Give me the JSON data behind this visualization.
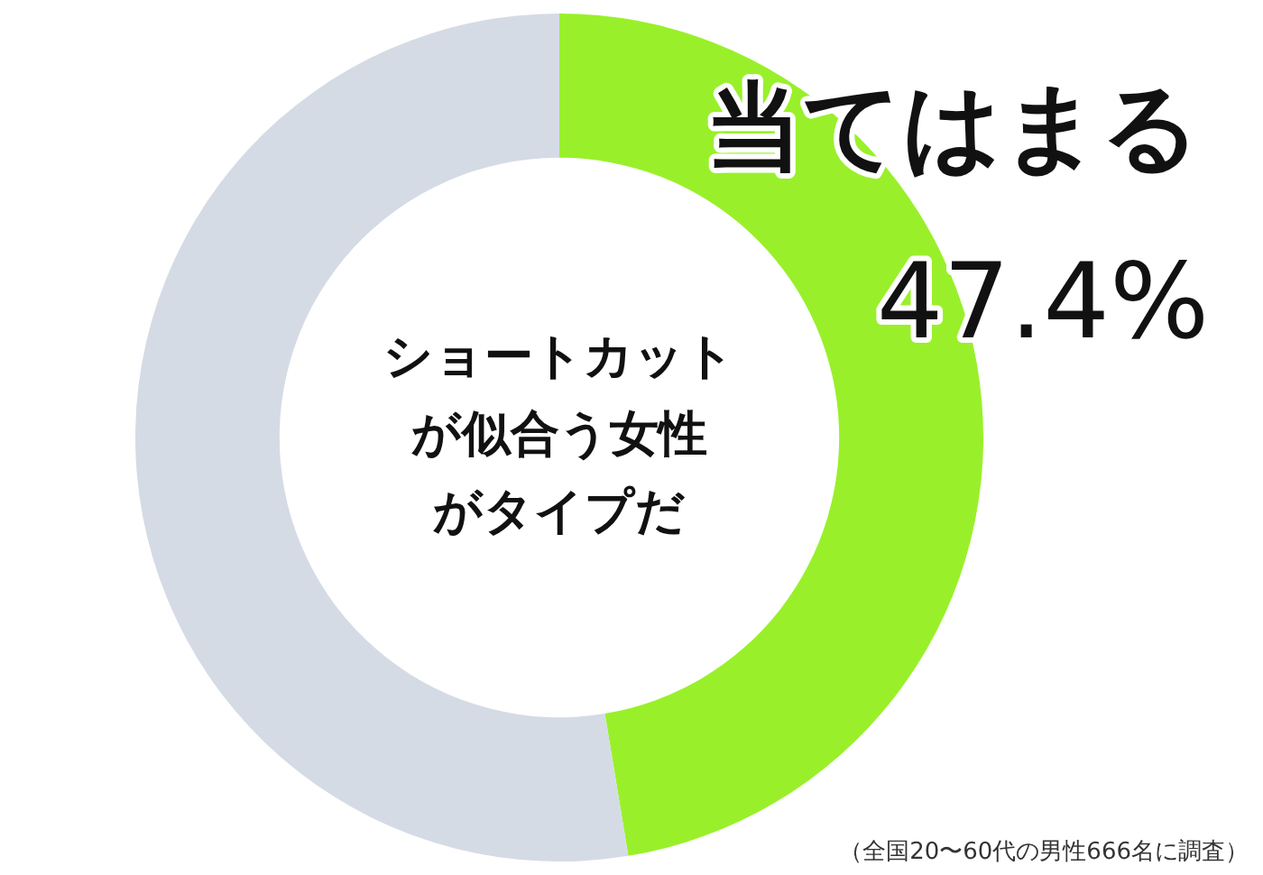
{
  "chart_data": {
    "type": "donut",
    "title": "ショートカットが似合う女性がタイプだ",
    "categories": [
      "当てはまる",
      null
    ],
    "values": [
      47.4,
      52.6
    ],
    "colors": [
      "#99f02a",
      "#d5dbe5"
    ],
    "value_labels": [
      "47.4%",
      null
    ],
    "annotations": [
      "（全国20〜60代の男性666名に調査）"
    ]
  }
}
